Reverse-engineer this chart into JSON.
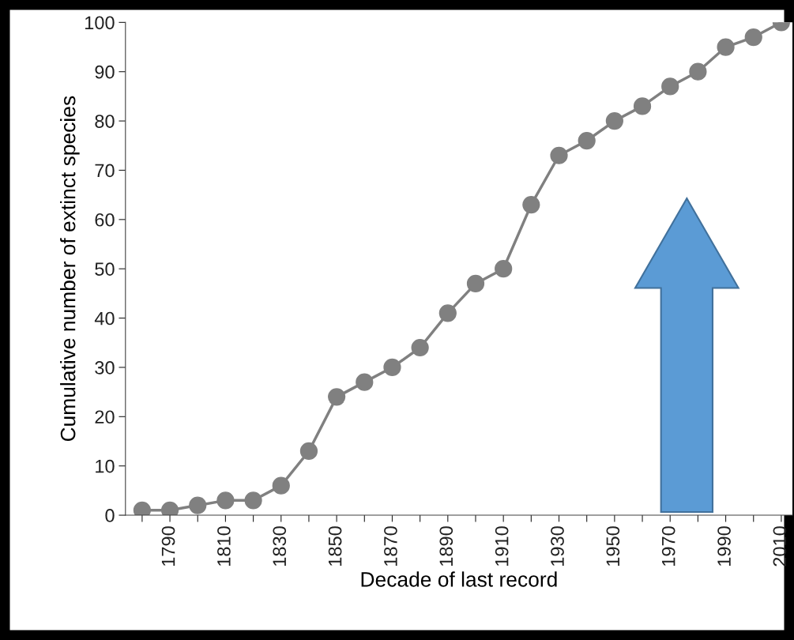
{
  "chart_data": {
    "type": "line",
    "xlabel": "Decade of last record",
    "ylabel": "Cumulative number of extinct species",
    "categories": [
      null,
      "1790",
      null,
      "1810",
      null,
      "1830",
      null,
      "1850",
      null,
      "1870",
      null,
      "1890",
      null,
      "1910",
      null,
      "1930",
      null,
      "1950",
      null,
      "1970",
      null,
      "1990",
      null,
      "2010"
    ],
    "series": [
      {
        "color": "#808080",
        "values": [
          1,
          1,
          2,
          3,
          3,
          6,
          13,
          24,
          27,
          30,
          34,
          41,
          47,
          50,
          63,
          73,
          76,
          80,
          83,
          87,
          90,
          95,
          97,
          100
        ]
      }
    ],
    "ylim": [
      0,
      100
    ],
    "yticks": [
      0,
      10,
      20,
      30,
      40,
      50,
      60,
      70,
      80,
      90,
      100
    ],
    "marker": "circle",
    "line_style": "solid",
    "grid": false,
    "legend": false
  }
}
